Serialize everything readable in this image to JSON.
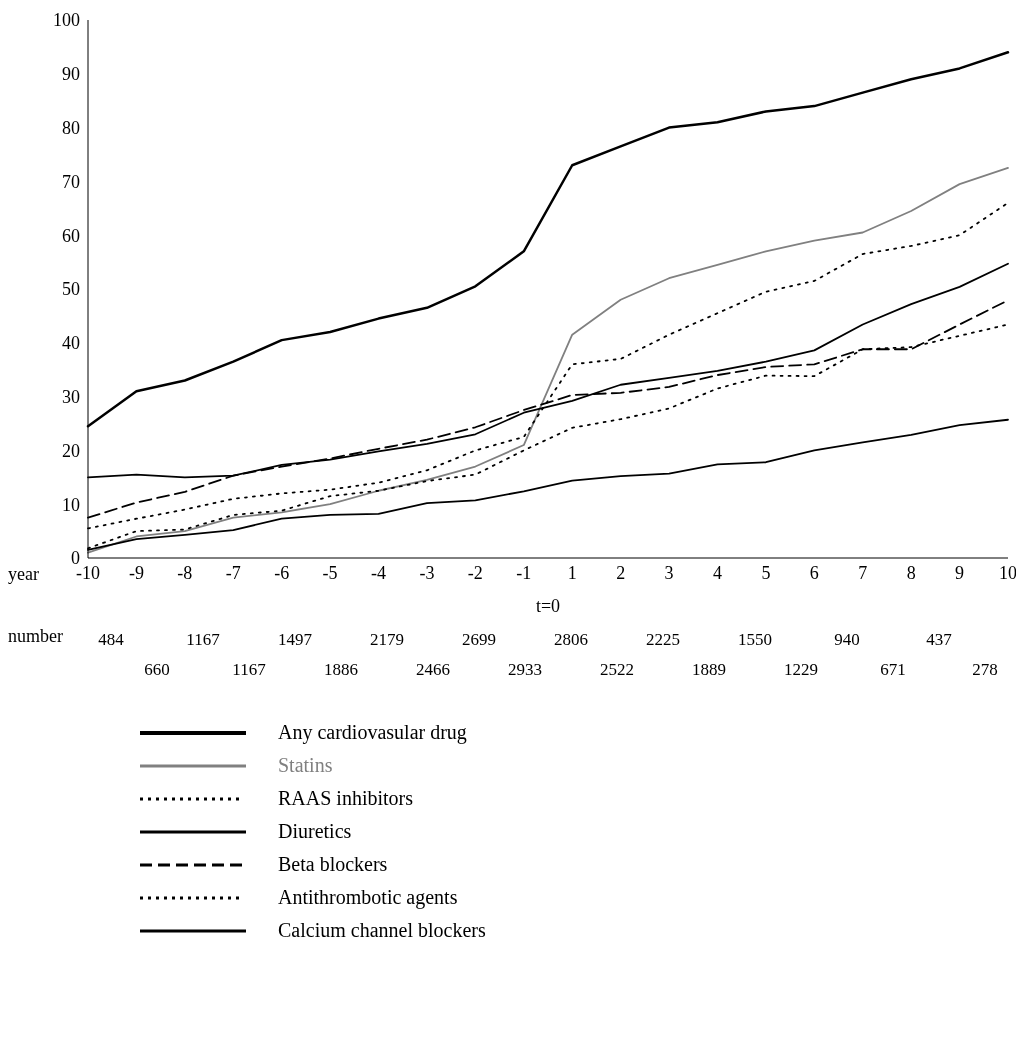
{
  "chart_data": {
    "type": "line",
    "categories": [
      "-10",
      "-9",
      "-8",
      "-7",
      "-6",
      "-5",
      "-4",
      "-3",
      "-2",
      "-1",
      "1",
      "2",
      "3",
      "4",
      "5",
      "6",
      "7",
      "8",
      "9",
      "10"
    ],
    "series": [
      {
        "name": "Any cardiovasular drug",
        "color": "#000000",
        "line_style": "solid",
        "values": [
          24.5,
          31,
          33,
          36.5,
          40.5,
          42,
          44.5,
          46.5,
          50.5,
          57,
          73,
          76.5,
          80,
          81,
          83,
          84,
          86.5,
          89,
          91,
          94
        ]
      },
      {
        "name": "Statins",
        "color": "#808080",
        "line_style": "solid",
        "values": [
          1,
          4,
          5,
          7.5,
          8.5,
          10,
          12.5,
          14.5,
          17,
          21,
          41.5,
          48,
          52,
          54.5,
          57,
          59,
          60.5,
          64.5,
          69.5,
          72.5
        ]
      },
      {
        "name": "RAAS inhibitors",
        "color": "#000000",
        "line_style": "dotted",
        "values": [
          5.5,
          7.3,
          9,
          11,
          12,
          12.7,
          14,
          16.3,
          20,
          22.5,
          36,
          37,
          41.5,
          45.5,
          49.5,
          51.5,
          56.5,
          58,
          60,
          66
        ]
      },
      {
        "name": "Diuretics",
        "color": "#000000",
        "line_style": "solid",
        "values": [
          15,
          15.5,
          15,
          15.3,
          17.3,
          18.3,
          19.8,
          21.2,
          23,
          27,
          29.2,
          32.2,
          33.5,
          34.8,
          36.5,
          38.6,
          43.4,
          47.2,
          50.4,
          54.7
        ]
      },
      {
        "name": "Beta blockers",
        "color": "#000000",
        "line_style": "dashed",
        "values": [
          7.5,
          10.3,
          12.3,
          15.3,
          17,
          18.5,
          20.3,
          22,
          24.3,
          27.5,
          30.3,
          30.7,
          31.8,
          34,
          35.5,
          36,
          38.8,
          38.8,
          43.4,
          47.9
        ]
      },
      {
        "name": "Antithrombotic agents",
        "color": "#000000",
        "line_style": "dotted",
        "values": [
          1.8,
          5,
          5.3,
          8,
          8.8,
          11.5,
          12.5,
          14.3,
          15.5,
          20,
          24.2,
          25.8,
          27.8,
          31.5,
          33.9,
          33.8,
          38.8,
          39.2,
          41.3,
          43.4
        ]
      },
      {
        "name": "Calcium channel blockers",
        "color": "#000000",
        "line_style": "solid",
        "values": [
          1.5,
          3.5,
          4.3,
          5.2,
          7.3,
          8,
          8.2,
          10.2,
          10.7,
          12.4,
          14.4,
          15.2,
          15.7,
          17.4,
          17.8,
          20,
          21.5,
          22.9,
          24.7,
          25.7
        ]
      }
    ],
    "ylim": [
      0,
      100
    ],
    "yticks": [
      0,
      10,
      20,
      30,
      40,
      50,
      60,
      70,
      80,
      90,
      100
    ],
    "grid": false,
    "legend": "bottom",
    "marker": "none",
    "annotations": [
      "year",
      "t=0",
      "number",
      "484",
      "660",
      "1167",
      "1167",
      "1497",
      "1886",
      "2179",
      "2466",
      "2699",
      "2933",
      "2806",
      "2522",
      "2225",
      "1889",
      "1550",
      "1229",
      "940",
      "671",
      "437",
      "278"
    ]
  }
}
